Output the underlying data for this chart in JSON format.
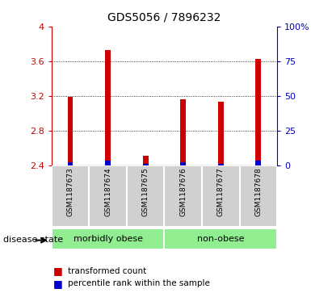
{
  "title": "GDS5056 / 7896232",
  "samples": [
    "GSM1187673",
    "GSM1187674",
    "GSM1187675",
    "GSM1187676",
    "GSM1187677",
    "GSM1187678"
  ],
  "red_values": [
    3.19,
    3.73,
    2.51,
    3.16,
    3.13,
    3.63
  ],
  "blue_values": [
    2.44,
    2.46,
    2.42,
    2.44,
    2.42,
    2.46
  ],
  "base": 2.4,
  "ylim_left": [
    2.4,
    4.0
  ],
  "yticks_left": [
    2.4,
    2.8,
    3.2,
    3.6,
    4.0
  ],
  "ytick_labels_left": [
    "2.4",
    "2.8",
    "3.2",
    "3.6",
    "4"
  ],
  "yticks_right": [
    0,
    25,
    50,
    75,
    100
  ],
  "ytick_labels_right": [
    "0",
    "25",
    "50",
    "75",
    "100%"
  ],
  "gridlines": [
    2.8,
    3.2,
    3.6
  ],
  "groups": [
    {
      "label": "morbidly obese",
      "indices": [
        0,
        1,
        2
      ],
      "color": "#90EE90"
    },
    {
      "label": "non-obese",
      "indices": [
        3,
        4,
        5
      ],
      "color": "#90EE90"
    }
  ],
  "disease_state_label": "disease state",
  "legend_items": [
    {
      "color": "#CC0000",
      "label": "transformed count"
    },
    {
      "color": "#0000CC",
      "label": "percentile rank within the sample"
    }
  ],
  "bar_width": 0.15,
  "red_color": "#CC0000",
  "blue_color": "#0000CC",
  "bg_color": "#FFFFFF",
  "tick_label_color_left": "#CC0000",
  "tick_label_color_right": "#0000BB",
  "sample_bg_color": "#D0D0D0",
  "sample_border_color": "#AAAAAA"
}
